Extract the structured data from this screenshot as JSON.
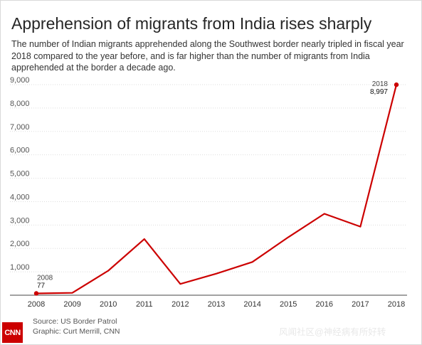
{
  "header": {
    "title": "Apprehension of migrants from India rises sharply",
    "subtitle": "The number of Indian migrants apprehended along the Southwest border nearly tripled in fiscal year 2018 compared to the year before, and is far higher than the number of migrants from India apprehended at the border a decade ago."
  },
  "chart_data": {
    "type": "line",
    "title": "Apprehension of migrants from India rises sharply",
    "xlabel": "",
    "ylabel": "",
    "x": [
      2008,
      2009,
      2010,
      2011,
      2012,
      2013,
      2014,
      2015,
      2016,
      2017,
      2018
    ],
    "series": [
      {
        "values": [
          77,
          100,
          1050,
          2400,
          480,
          920,
          1420,
          2480,
          3480,
          2930,
          8997
        ]
      }
    ],
    "y_ticks": [
      "9,000",
      "8,000",
      "7,000",
      "6,000",
      "5,000",
      "4,000",
      "3,000",
      "2,000",
      "1,000"
    ],
    "x_ticks": [
      "2008",
      "2009",
      "2010",
      "2011",
      "2012",
      "2013",
      "2014",
      "2015",
      "2016",
      "2017",
      "2018"
    ],
    "ylim": [
      0,
      9000
    ],
    "grid": "horizontal",
    "line_color": "#cc0000",
    "annotations": [
      {
        "year": "2008",
        "value": "77"
      },
      {
        "year": "2018",
        "value": "8,997"
      }
    ]
  },
  "footer": {
    "source": "Source: US Border Patrol",
    "graphic": "Graphic: Curt Merrill, CNN",
    "logo": "CNN",
    "watermark": "风闻社区@神经病有所好转"
  }
}
